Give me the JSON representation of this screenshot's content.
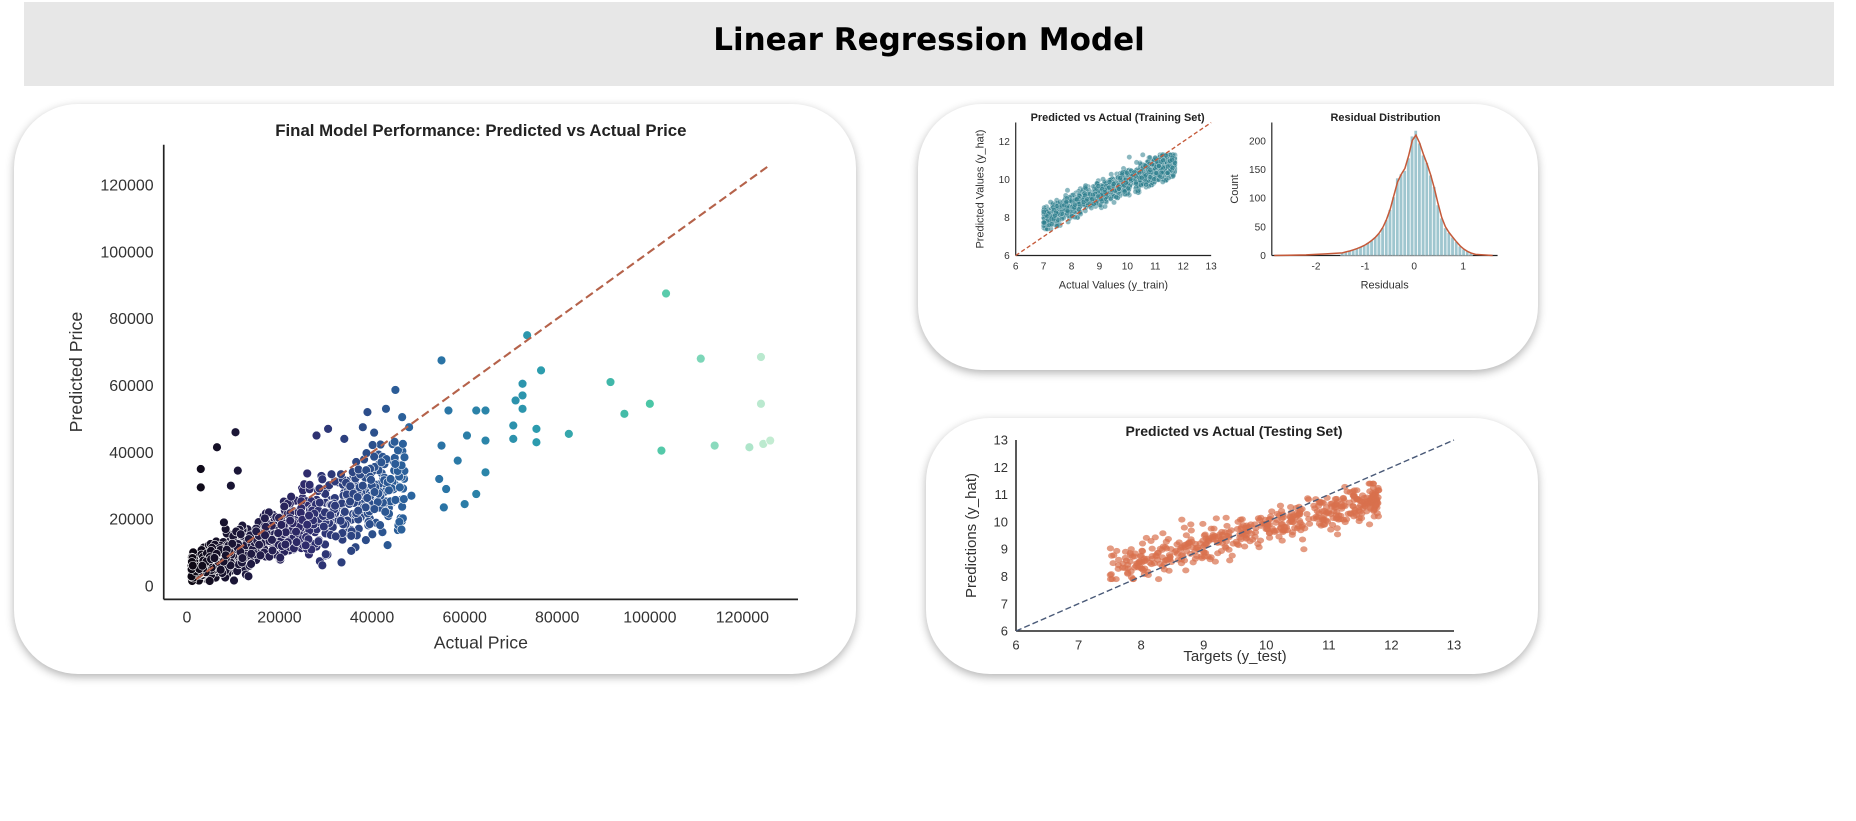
{
  "page": {
    "title": "Linear Regression Model"
  },
  "chart_data": [
    {
      "type": "scatter",
      "title": "Final Model Performance: Predicted vs Actual Price",
      "xlabel": "Actual Price",
      "ylabel": "Predicted Price",
      "xlim": [
        -5000,
        132000
      ],
      "ylim": [
        -4000,
        132000
      ],
      "xticks": [
        0,
        20000,
        40000,
        60000,
        80000,
        100000,
        120000
      ],
      "yticks": [
        0,
        20000,
        40000,
        60000,
        80000,
        100000,
        120000
      ],
      "grid": false,
      "reference_line": {
        "from": [
          2000,
          2000
        ],
        "to": [
          126000,
          126000
        ],
        "style": "dashed",
        "color": "#b5624a"
      },
      "hue_palette": [
        "#0c0710",
        "#2f2a6b",
        "#2a6aa3",
        "#2c9bae",
        "#4cc7a6",
        "#c3ecd2"
      ],
      "cluster": {
        "description": "dense cluster of points at low prices",
        "approx_count": 1000,
        "x_range": [
          1000,
          48000
        ],
        "trend": "predicted ≈ 0.6 × actual + 4000"
      },
      "points": [
        [
          3000,
          35000
        ],
        [
          3000,
          29500
        ],
        [
          6500,
          41500
        ],
        [
          10500,
          46000
        ],
        [
          9500,
          30000
        ],
        [
          11000,
          34500
        ],
        [
          8000,
          19000
        ],
        [
          55000,
          67500
        ],
        [
          56500,
          52500
        ],
        [
          60500,
          45000
        ],
        [
          55000,
          42000
        ],
        [
          54500,
          32000
        ],
        [
          56000,
          29000
        ],
        [
          58500,
          37500
        ],
        [
          55500,
          23500
        ],
        [
          60000,
          24500
        ],
        [
          62500,
          27500
        ],
        [
          62500,
          52500
        ],
        [
          64500,
          52500
        ],
        [
          64500,
          43500
        ],
        [
          64500,
          34000
        ],
        [
          70500,
          48000
        ],
        [
          70500,
          44000
        ],
        [
          71000,
          55500
        ],
        [
          72500,
          57000
        ],
        [
          72500,
          60500
        ],
        [
          73500,
          75000
        ],
        [
          72500,
          53000
        ],
        [
          75500,
          47000
        ],
        [
          75500,
          43000
        ],
        [
          76500,
          64500
        ],
        [
          82500,
          45500
        ],
        [
          91500,
          61000
        ],
        [
          94500,
          51500
        ],
        [
          100000,
          54500
        ],
        [
          102500,
          40500
        ],
        [
          103500,
          87500
        ],
        [
          111000,
          68000
        ],
        [
          114000,
          42000
        ],
        [
          121500,
          41500
        ],
        [
          124000,
          68500
        ],
        [
          124000,
          54500
        ],
        [
          124500,
          42500
        ],
        [
          126000,
          43500
        ],
        [
          39000,
          52000
        ],
        [
          43000,
          53000
        ],
        [
          46500,
          50500
        ],
        [
          48000,
          47500
        ],
        [
          38000,
          47500
        ],
        [
          37000,
          22500
        ],
        [
          40500,
          23000
        ],
        [
          39500,
          18500
        ],
        [
          35500,
          15000
        ],
        [
          35500,
          10500
        ],
        [
          28000,
          45000
        ],
        [
          34000,
          44000
        ],
        [
          30500,
          47000
        ],
        [
          46000,
          29500
        ],
        [
          44000,
          32000
        ],
        [
          42000,
          37000
        ],
        [
          45000,
          36500
        ],
        [
          47000,
          38500
        ],
        [
          48500,
          27000
        ],
        [
          30000,
          9500
        ],
        [
          32000,
          24000
        ]
      ]
    },
    {
      "type": "scatter",
      "title": "Predicted vs Actual (Training Set)",
      "xlabel": "Actual Values (y_train)",
      "ylabel": "Predicted Values (y_hat)",
      "xlim": [
        6,
        13
      ],
      "ylim": [
        6,
        13
      ],
      "xticks": [
        6,
        7,
        8,
        9,
        10,
        11,
        12,
        13
      ],
      "yticks": [
        6,
        8,
        10,
        12
      ],
      "reference_line": {
        "from": [
          6,
          6
        ],
        "to": [
          13,
          13
        ],
        "style": "dashed",
        "color": "#c55a3a"
      },
      "point_color": "#2c7d8c",
      "cluster": {
        "approx_count": 1500,
        "x_range": [
          7.0,
          11.7
        ],
        "y_range": [
          7.4,
          11.3
        ],
        "trend": "y ≈ 0.65 × x + 3.4"
      }
    },
    {
      "type": "histogram",
      "title": "Residual Distribution",
      "xlabel": "Residuals",
      "ylabel": "Count",
      "xlim": [
        -2.9,
        1.7
      ],
      "ylim": [
        0,
        232
      ],
      "xticks": [
        -2,
        -1,
        0,
        1
      ],
      "yticks": [
        0,
        50,
        100,
        150,
        200
      ],
      "bar_color": "#7fb3bf",
      "kde_color": "#c55a3a",
      "bins": {
        "start": -1.5,
        "width": 0.075,
        "counts": [
          5,
          6,
          8,
          10,
          12,
          15,
          17,
          22,
          26,
          32,
          38,
          48,
          62,
          80,
          102,
          135,
          142,
          148,
          170,
          208,
          218,
          196,
          175,
          162,
          140,
          120,
          88,
          65,
          48,
          40,
          32,
          24,
          16,
          11,
          7,
          4
        ]
      }
    },
    {
      "type": "scatter",
      "title": "Predicted vs Actual (Testing Set)",
      "xlabel": "Targets (y_test)",
      "ylabel": "Predictions (y_hat)",
      "xlim": [
        6,
        13
      ],
      "ylim": [
        6,
        13
      ],
      "xticks": [
        6,
        7,
        8,
        9,
        10,
        11,
        12,
        13
      ],
      "yticks": [
        6,
        7,
        8,
        9,
        10,
        11,
        12,
        13
      ],
      "reference_line": {
        "from": [
          6,
          6
        ],
        "to": [
          13,
          13
        ],
        "style": "dashed",
        "color": "#4a5a78"
      },
      "point_color": "#d9704d",
      "cluster": {
        "approx_count": 500,
        "x_range": [
          7.5,
          11.8
        ],
        "y_range": [
          7.9,
          11.4
        ],
        "trend": "y ≈ 0.6 × x + 3.8"
      }
    }
  ]
}
